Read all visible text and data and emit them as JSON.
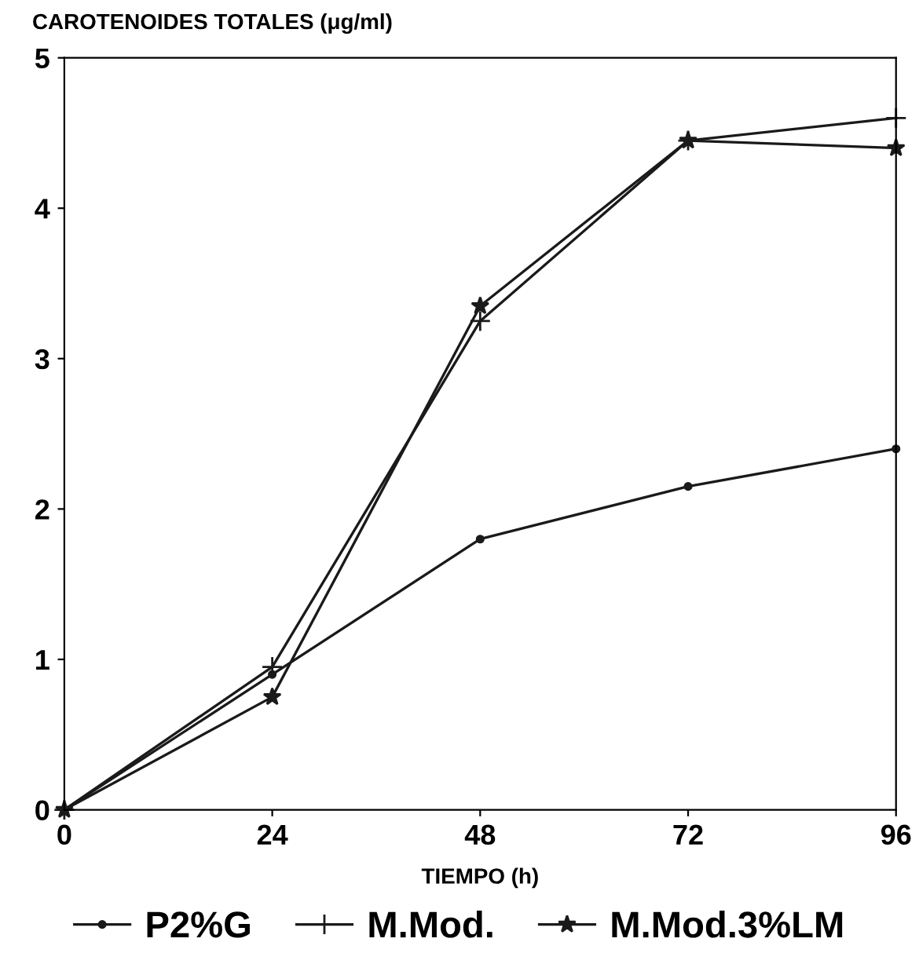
{
  "chart_data": {
    "type": "line",
    "ylabel": "CAROTENOIDES TOTALES (μg/ml)",
    "xlabel": "TIEMPO (h)",
    "x": [
      0,
      24,
      48,
      72,
      96
    ],
    "xlim": [
      0,
      96
    ],
    "xticks": [
      0,
      24,
      48,
      72,
      96
    ],
    "ylim": [
      0,
      5
    ],
    "yticks": [
      0,
      1,
      2,
      3,
      4,
      5
    ],
    "grid": false,
    "legend": "bottom",
    "series": [
      {
        "name": "P2%G",
        "color": "#1a1a1a",
        "marker": "circle",
        "values": [
          0,
          0.9,
          1.8,
          2.15,
          2.4
        ]
      },
      {
        "name": "M.Mod.",
        "color": "#1a1a1a",
        "marker": "cross",
        "values": [
          0,
          0.95,
          3.25,
          4.45,
          4.6
        ]
      },
      {
        "name": "M.Mod.3%LM",
        "color": "#1a1a1a",
        "marker": "star",
        "values": [
          0,
          0.75,
          3.35,
          4.45,
          4.4
        ]
      }
    ]
  }
}
